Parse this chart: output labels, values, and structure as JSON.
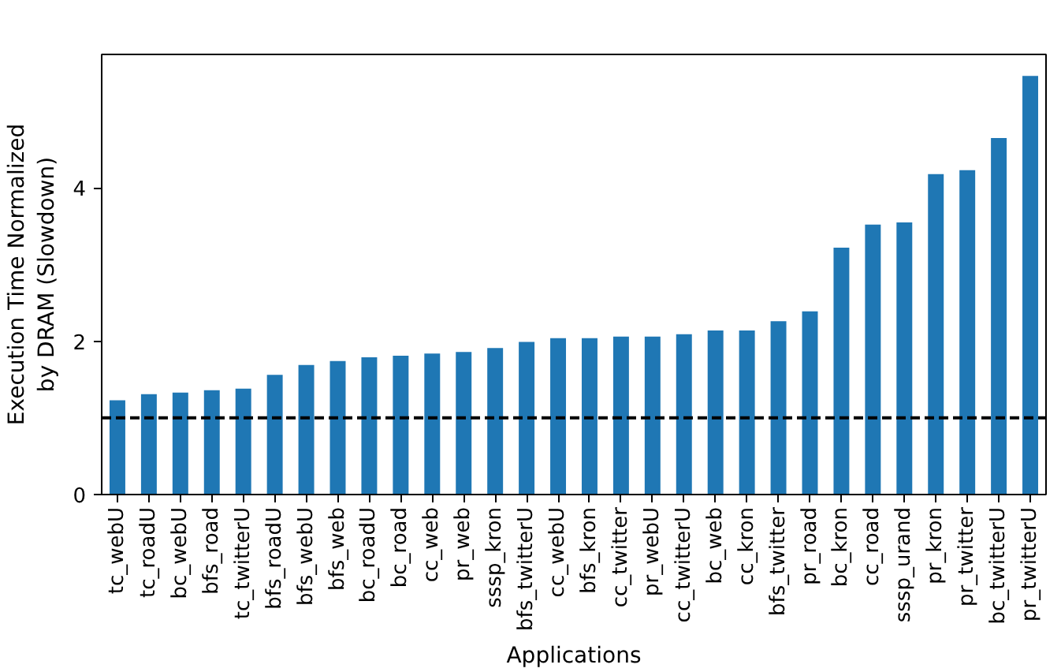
{
  "chart_data": {
    "type": "bar",
    "xlabel": "Applications",
    "ylabel": "Execution Time Normalized\nby DRAM (Slowdown)",
    "categories": [
      "tc_webU",
      "tc_roadU",
      "bc_webU",
      "bfs_road",
      "tc_twitterU",
      "bfs_roadU",
      "bfs_webU",
      "bfs_web",
      "bc_roadU",
      "bc_road",
      "cc_web",
      "pr_web",
      "sssp_kron",
      "bfs_twitterU",
      "cc_webU",
      "bfs_kron",
      "cc_twitter",
      "pr_webU",
      "cc_twitterU",
      "bc_web",
      "cc_kron",
      "bfs_twitter",
      "pr_road",
      "bc_kron",
      "cc_road",
      "sssp_urand",
      "pr_kron",
      "pr_twitter",
      "bc_twitterU",
      "pr_twitterU"
    ],
    "values": [
      1.23,
      1.31,
      1.33,
      1.36,
      1.38,
      1.56,
      1.69,
      1.74,
      1.79,
      1.81,
      1.84,
      1.86,
      1.91,
      1.99,
      2.04,
      2.04,
      2.06,
      2.06,
      2.09,
      2.14,
      2.14,
      2.26,
      2.39,
      3.22,
      3.52,
      3.55,
      4.18,
      4.23,
      4.65,
      5.46
    ],
    "color": "#1f77b4",
    "ylim": [
      0,
      5.74
    ],
    "yticks": [
      0,
      2,
      4
    ],
    "grid": false,
    "ref_lines": [
      {
        "axis": "y",
        "value": 1,
        "color": "#000000",
        "line_style": "dashed"
      }
    ]
  }
}
